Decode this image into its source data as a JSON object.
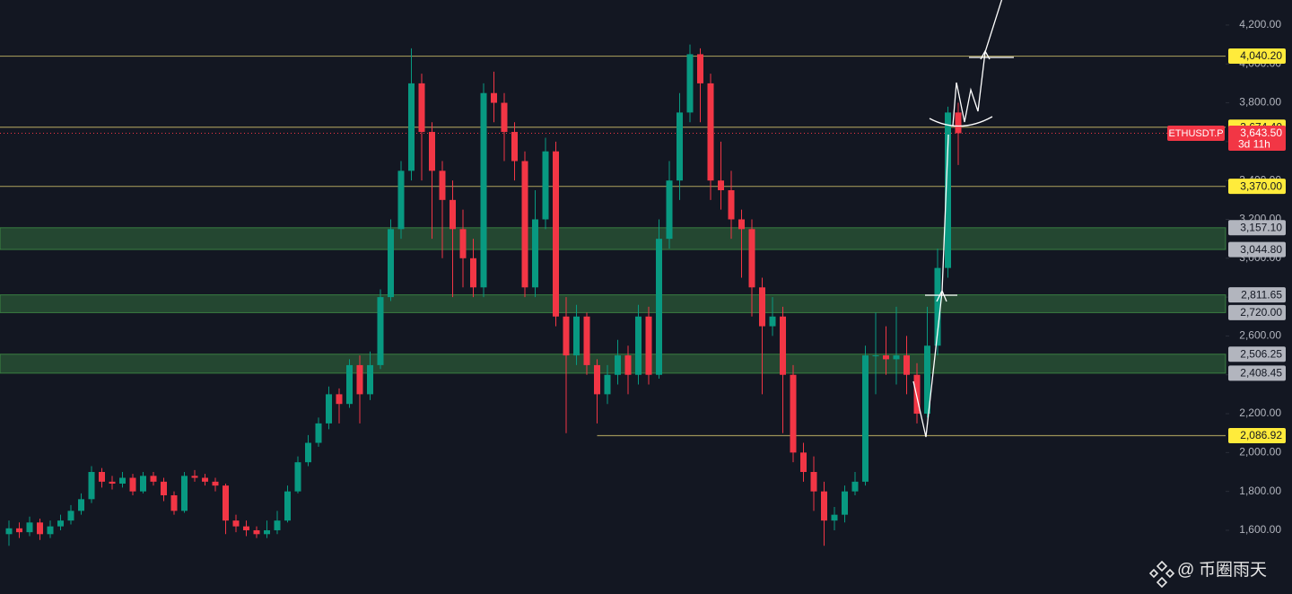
{
  "chart_data": {
    "type": "candlestick",
    "up_color": "#089981",
    "down_color": "#f23645",
    "open": [
      1580,
      1610,
      1590,
      1640,
      1580,
      1620,
      1650,
      1700,
      1760,
      1900,
      1850,
      1840,
      1870,
      1800,
      1880,
      1850,
      1780,
      1700,
      1880,
      1870,
      1850,
      1830,
      1650,
      1620,
      1600,
      1580,
      1600,
      1650,
      1800,
      1950,
      2050,
      2150,
      2300,
      2250,
      2450,
      2300,
      2450,
      2800,
      3150,
      3450,
      3900,
      3650,
      3450,
      3300,
      3150,
      3000,
      2850,
      3850,
      3800,
      3650,
      3500,
      2850,
      3200,
      3550,
      2700,
      2500,
      2700,
      2450,
      2300,
      2400,
      2500,
      2400,
      2700,
      2400,
      3100,
      3400,
      3750,
      4050,
      3900,
      3400,
      3350,
      3200,
      3150,
      2850,
      2650,
      2700,
      2400,
      2000,
      1900,
      1800,
      1650,
      1680,
      1800,
      1850,
      2500,
      2500,
      2480,
      2500,
      2400,
      2200,
      2550,
      2950,
      3750
    ],
    "high": [
      1650,
      1640,
      1670,
      1660,
      1650,
      1680,
      1730,
      1790,
      1930,
      1920,
      1880,
      1900,
      1890,
      1900,
      1900,
      1870,
      1800,
      1900,
      1910,
      1890,
      1870,
      1840,
      1680,
      1650,
      1620,
      1650,
      1700,
      1830,
      1980,
      2090,
      2180,
      2340,
      2330,
      2480,
      2500,
      2520,
      2840,
      3200,
      3500,
      4080,
      3950,
      3700,
      3500,
      3400,
      3250,
      3100,
      3900,
      3960,
      3850,
      3700,
      3550,
      3350,
      3620,
      3600,
      2800,
      2760,
      2720,
      2480,
      2450,
      2580,
      2550,
      2760,
      2750,
      3200,
      3500,
      3850,
      4100,
      4080,
      3950,
      3600,
      3450,
      3250,
      3200,
      2900,
      2800,
      2750,
      2450,
      2050,
      1980,
      1850,
      1720,
      1830,
      1900,
      2550,
      2720,
      2650,
      2750,
      2600,
      2460,
      2750,
      3050,
      3780,
      3800
    ],
    "low": [
      1520,
      1560,
      1570,
      1550,
      1560,
      1600,
      1630,
      1680,
      1740,
      1820,
      1810,
      1820,
      1780,
      1790,
      1830,
      1750,
      1680,
      1690,
      1850,
      1830,
      1800,
      1580,
      1590,
      1570,
      1560,
      1560,
      1580,
      1640,
      1790,
      1930,
      2030,
      2120,
      2150,
      2230,
      2150,
      2270,
      2430,
      2780,
      3100,
      3400,
      3400,
      3100,
      3000,
      2800,
      2850,
      2800,
      2800,
      3700,
      3500,
      3400,
      2800,
      2800,
      3150,
      2650,
      2100,
      2450,
      2400,
      2150,
      2250,
      2350,
      2300,
      2350,
      2350,
      2380,
      3050,
      3300,
      3700,
      3700,
      3300,
      3250,
      3100,
      2900,
      2700,
      2300,
      2600,
      2100,
      1950,
      1850,
      1700,
      1520,
      1600,
      1640,
      1780,
      1830,
      2300,
      2400,
      2350,
      2300,
      2150,
      2180,
      2500,
      2900,
      3480
    ],
    "close": [
      1610,
      1590,
      1640,
      1580,
      1620,
      1650,
      1700,
      1760,
      1900,
      1850,
      1840,
      1870,
      1800,
      1880,
      1850,
      1780,
      1700,
      1880,
      1870,
      1850,
      1830,
      1650,
      1620,
      1600,
      1580,
      1600,
      1650,
      1800,
      1950,
      2050,
      2150,
      2300,
      2250,
      2450,
      2300,
      2450,
      2800,
      3150,
      3450,
      3900,
      3650,
      3450,
      3300,
      3150,
      3000,
      2850,
      3850,
      3800,
      3650,
      3500,
      2850,
      3200,
      3550,
      2700,
      2500,
      2700,
      2450,
      2300,
      2400,
      2500,
      2400,
      2700,
      2400,
      3100,
      3400,
      3750,
      4050,
      3900,
      3400,
      3350,
      3200,
      3150,
      2850,
      2650,
      2700,
      2400,
      2000,
      1900,
      1800,
      1650,
      1680,
      1800,
      1850,
      2500,
      2500,
      2480,
      2500,
      2400,
      2200,
      2550,
      2950,
      3750,
      3643.5
    ],
    "ylim": [
      1272,
      4329
    ],
    "yticks": [
      {
        "value": 1600,
        "label": "1,600.00"
      },
      {
        "value": 1800,
        "label": "1,800.00"
      },
      {
        "value": 2000,
        "label": "2,000.00"
      },
      {
        "value": 2200,
        "label": "2,200.00"
      },
      {
        "value": 2400,
        "label": "2,400.00"
      },
      {
        "value": 2600,
        "label": "2,600.00"
      },
      {
        "value": 2800,
        "label": "2,800.00"
      },
      {
        "value": 3000,
        "label": "3,000.00"
      },
      {
        "value": 3200,
        "label": "3,200.00"
      },
      {
        "value": 3400,
        "label": "3,400.00"
      },
      {
        "value": 3600,
        "label": "3,600.00"
      },
      {
        "value": 3800,
        "label": "3,800.00"
      },
      {
        "value": 4000,
        "label": "4,000.00"
      },
      {
        "value": 4200,
        "label": "4,200.00"
      }
    ],
    "level_color": "#9c9257",
    "levels": [
      {
        "value": 4040.2,
        "label": "4,040.20"
      },
      {
        "value": 3674.4,
        "label": "3,674.40"
      },
      {
        "value": 3370,
        "label": "3,370.00"
      },
      {
        "value": 2086.92,
        "label": "2,086.92"
      }
    ],
    "zone_color": "#4caf50",
    "zones": [
      {
        "low": {
          "value": 3044.8,
          "label": "3,044.80"
        },
        "high": {
          "value": 3157.1,
          "label": "3,157.10"
        }
      },
      {
        "low": {
          "value": 2720,
          "label": "2,720.00"
        },
        "high": {
          "value": 2811.65,
          "label": "2,811.65"
        }
      },
      {
        "low": {
          "value": 2408.45,
          "label": "2,408.45"
        },
        "high": {
          "value": 2506.25,
          "label": "2,506.25"
        }
      }
    ],
    "current": {
      "symbol": "ETHUSDT.P",
      "price": {
        "value": 3643.5,
        "label": "3,643.50"
      },
      "countdown": "3d 11h"
    }
  },
  "watermark": {
    "at": "@",
    "name": "币圈雨天"
  }
}
